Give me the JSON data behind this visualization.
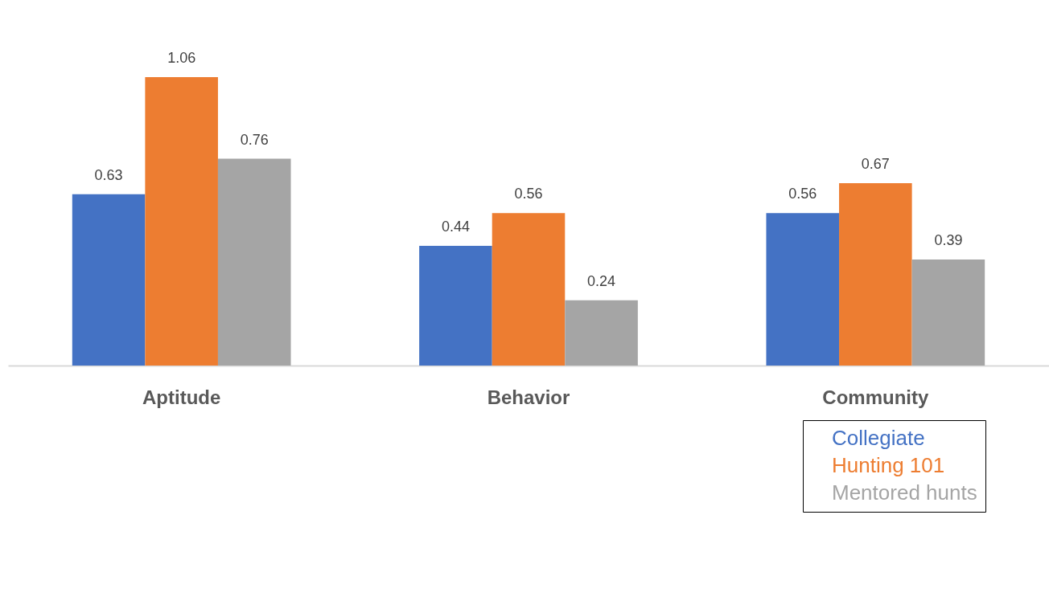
{
  "chart_data": {
    "type": "bar",
    "categories": [
      "Aptitude",
      "Behavior",
      "Community"
    ],
    "series": [
      {
        "name": "Collegiate",
        "color": "#4472c4",
        "values": [
          0.63,
          0.44,
          0.56
        ]
      },
      {
        "name": "Hunting 101",
        "color": "#ed7d31",
        "values": [
          1.06,
          0.56,
          0.67
        ]
      },
      {
        "name": "Mentored hunts",
        "color": "#a5a5a5",
        "values": [
          0.76,
          0.24,
          0.39
        ]
      }
    ],
    "data_labels": true,
    "grid": false,
    "legend": "bottom right",
    "tick_labels": "x"
  }
}
